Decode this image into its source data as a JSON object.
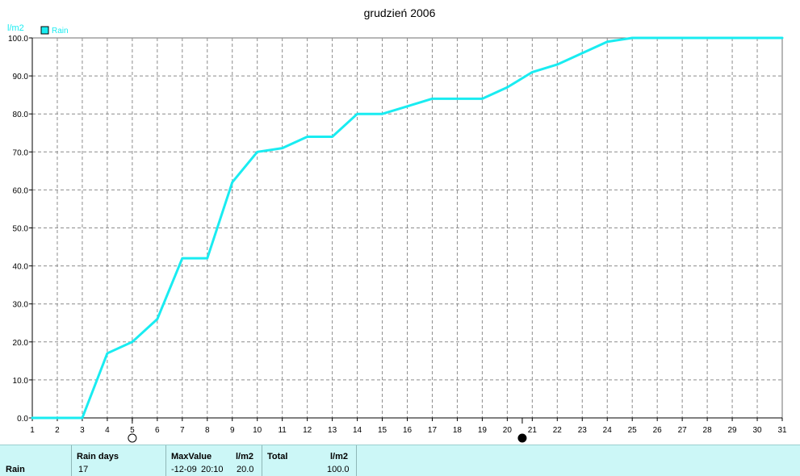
{
  "colors": {
    "series": "#19ecf1",
    "axis": "#000000",
    "grid": "#8c8c8c",
    "background": "#ffffff",
    "summary_background": "#ccf7f7"
  },
  "chart_data": {
    "type": "line",
    "title": "grudzień 2006",
    "ylabel": "l/m2",
    "xlabel": "",
    "legend": {
      "placement": "top-left",
      "entries": [
        "Rain"
      ]
    },
    "x": [
      1,
      2,
      3,
      4,
      5,
      6,
      7,
      8,
      9,
      10,
      11,
      12,
      13,
      14,
      15,
      16,
      17,
      18,
      19,
      20,
      21,
      22,
      23,
      24,
      25,
      26,
      27,
      28,
      29,
      30,
      31
    ],
    "series": [
      {
        "name": "Rain",
        "values": [
          0.0,
          0.0,
          0.0,
          17.0,
          20.0,
          26.0,
          42.0,
          42.0,
          62.0,
          70.0,
          71.0,
          74.0,
          74.0,
          80.0,
          80.0,
          82.0,
          84.0,
          84.0,
          84.0,
          87.0,
          91.0,
          93.0,
          96.0,
          99.0,
          100.0,
          100.0,
          100.0,
          100.0,
          100.0,
          100.0,
          100.0
        ]
      }
    ],
    "xlim": [
      1,
      31
    ],
    "ylim": [
      0,
      100
    ],
    "y_ticks": [
      "0.0",
      "10.0",
      "20.0",
      "30.0",
      "40.0",
      "50.0",
      "60.0",
      "70.0",
      "80.0",
      "90.0",
      "100.0"
    ],
    "x_ticks": [
      "1",
      "2",
      "3",
      "4",
      "5",
      "6",
      "7",
      "8",
      "9",
      "10",
      "11",
      "12",
      "13",
      "14",
      "15",
      "16",
      "17",
      "18",
      "19",
      "20",
      "21",
      "22",
      "23",
      "24",
      "25",
      "26",
      "27",
      "28",
      "29",
      "30",
      "31"
    ],
    "grid": true,
    "moon_markers": [
      {
        "x": 5.0,
        "phase": "full-moon"
      },
      {
        "x": 20.6,
        "phase": "new-moon"
      }
    ]
  },
  "summary": {
    "row_label": "Rain",
    "rain_days_label": "Rain days",
    "rain_days_value": "17",
    "max_value_label": "MaxValue",
    "max_unit_label": "l/m2",
    "max_date": "-12-09",
    "max_time": "20:10",
    "max_value": "20.0",
    "total_label": "Total",
    "total_unit_label": "l/m2",
    "total_value": "100.0"
  }
}
